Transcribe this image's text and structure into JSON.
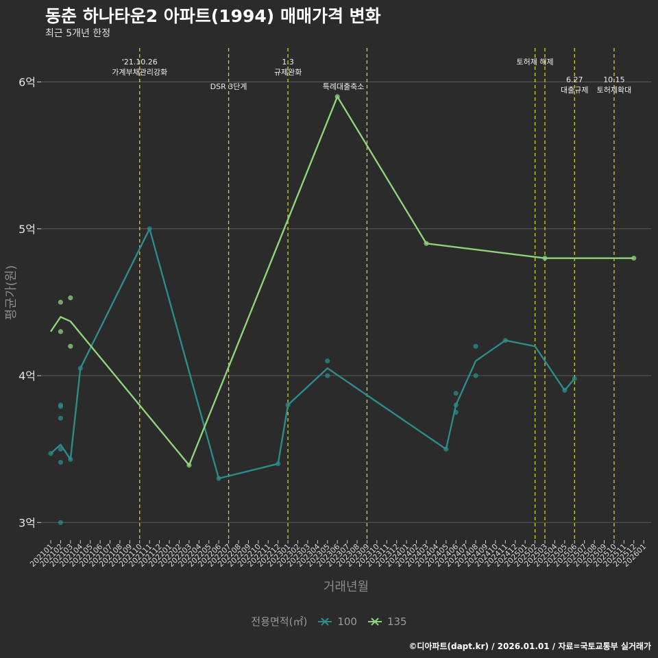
{
  "title": "동춘 하나타운2 아파트(1994) 매매가격 변화",
  "subtitle": "최근 5개년 한정",
  "caption": "©디아파트(dapt.kr) / 2026.01.01 / 자료=국토교통부 실거래가",
  "colors": {
    "s100": "#2e8b8b",
    "s135": "#8fd47a",
    "vline": "#d4d41a",
    "grid": "#5a5a5a",
    "bg": "#2b2b2c"
  },
  "chart_data": {
    "type": "line",
    "title": "동춘 하나타운2 아파트(1994) 매매가격 변화",
    "subtitle": "최근 5개년 한정",
    "xlabel": "거래년월",
    "ylabel": "평균가(원)",
    "ylim": [
      2.88,
      6.25
    ],
    "yticks": [
      {
        "v": 3,
        "label": "3억"
      },
      {
        "v": 4,
        "label": "4억"
      },
      {
        "v": 5,
        "label": "5억"
      },
      {
        "v": 6,
        "label": "6억"
      }
    ],
    "x_months": [
      "202101",
      "202102",
      "202103",
      "202104",
      "202105",
      "202106",
      "202107",
      "202108",
      "202109",
      "202110",
      "202111",
      "202112",
      "202201",
      "202202",
      "202203",
      "202204",
      "202205",
      "202206",
      "202207",
      "202208",
      "202209",
      "202210",
      "202211",
      "202212",
      "202301",
      "202302",
      "202303",
      "202304",
      "202305",
      "202306",
      "202307",
      "202308",
      "202309",
      "202310",
      "202311",
      "202312",
      "202401",
      "202402",
      "202403",
      "202404",
      "202405",
      "202406",
      "202407",
      "202408",
      "202409",
      "202410",
      "202411",
      "202412",
      "202501",
      "202502",
      "202503",
      "202504",
      "202505",
      "202506",
      "202507",
      "202508",
      "202509",
      "202510",
      "202511",
      "202512",
      "202601"
    ],
    "legend_title": "전용면적(㎡)",
    "series": [
      {
        "name": "100",
        "color": "#2e8b8b",
        "line": [
          [
            0,
            3.47
          ],
          [
            1,
            3.53
          ],
          [
            2,
            3.43
          ],
          [
            3,
            4.05
          ],
          [
            10,
            5.0
          ],
          [
            17,
            3.3
          ],
          [
            23,
            3.4
          ],
          [
            24,
            3.8
          ],
          [
            28,
            4.05
          ],
          [
            40,
            3.5
          ],
          [
            41,
            3.8
          ],
          [
            43,
            4.1
          ],
          [
            46,
            4.24
          ],
          [
            49,
            4.2
          ],
          [
            52,
            3.9
          ],
          [
            53,
            3.98
          ]
        ],
        "points": [
          [
            0,
            3.47
          ],
          [
            1,
            3.0
          ],
          [
            1,
            3.41
          ],
          [
            1,
            3.5
          ],
          [
            1,
            3.71
          ],
          [
            1,
            3.79
          ],
          [
            1,
            3.8
          ],
          [
            2,
            3.43
          ],
          [
            3,
            4.05
          ],
          [
            10,
            5.0
          ],
          [
            17,
            3.3
          ],
          [
            23,
            3.4
          ],
          [
            24,
            3.8
          ],
          [
            28,
            4.0
          ],
          [
            28,
            4.1
          ],
          [
            40,
            3.5
          ],
          [
            41,
            3.75
          ],
          [
            41,
            3.8
          ],
          [
            41,
            3.88
          ],
          [
            43,
            4.0
          ],
          [
            43,
            4.2
          ],
          [
            46,
            4.24
          ],
          [
            52,
            3.9
          ],
          [
            53,
            3.98
          ]
        ]
      },
      {
        "name": "135",
        "color": "#8fd47a",
        "line": [
          [
            0,
            4.3
          ],
          [
            1,
            4.4
          ],
          [
            2,
            4.37
          ],
          [
            14,
            3.39
          ],
          [
            29,
            5.9
          ],
          [
            38,
            4.9
          ],
          [
            50,
            4.8
          ],
          [
            59,
            4.8
          ]
        ],
        "points": [
          [
            1,
            4.3
          ],
          [
            1,
            4.5
          ],
          [
            2,
            4.2
          ],
          [
            2,
            4.53
          ],
          [
            14,
            3.39
          ],
          [
            29,
            5.9
          ],
          [
            38,
            4.9
          ],
          [
            50,
            4.8
          ],
          [
            59,
            4.8
          ]
        ]
      }
    ],
    "events": [
      {
        "x": 9,
        "text": [
          "'21.10.26",
          "가계부채관리강화"
        ],
        "anchor": "middle",
        "level": 0
      },
      {
        "x": 18,
        "text": [
          "DSR 3단계"
        ],
        "anchor": "middle",
        "level": 1
      },
      {
        "x": 24,
        "text": [
          "1.3",
          "규제완화"
        ],
        "anchor": "middle",
        "level": 0
      },
      {
        "x": 32,
        "text": [
          "특례대출축소"
        ],
        "anchor": "end",
        "level": 2
      },
      {
        "x": 49,
        "text": [
          "토허제 해제"
        ],
        "anchor": "middle",
        "level": 0
      },
      {
        "x": 50,
        "text": [],
        "anchor": "middle",
        "level": 0
      },
      {
        "x": 53,
        "text": [
          "6.27",
          "대출규제"
        ],
        "anchor": "middle",
        "level": 3
      },
      {
        "x": 57,
        "text": [
          "10.15",
          "토허제확대"
        ],
        "anchor": "middle",
        "level": 3
      }
    ]
  }
}
